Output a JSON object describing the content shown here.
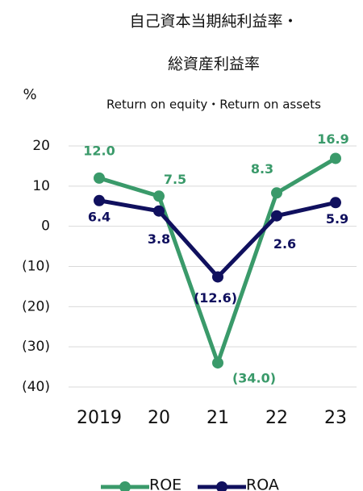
{
  "chart_data": {
    "type": "line",
    "title": "自己資本当期純利益率・",
    "title2": "総資産利益率",
    "subtitle": "Return on equity・Return on assets",
    "y_unit": "%",
    "categories": [
      "2019",
      "20",
      "21",
      "22",
      "23"
    ],
    "series": [
      {
        "name": "ROE",
        "color": "#3a9a6a",
        "values": [
          12.0,
          7.5,
          -34.0,
          8.3,
          16.9
        ],
        "value_labels": [
          "12.0",
          "7.5",
          "(34.0)",
          "8.3",
          "16.9"
        ]
      },
      {
        "name": "ROA",
        "color": "#10105e",
        "values": [
          6.4,
          3.8,
          -12.6,
          2.6,
          5.9
        ],
        "value_labels": [
          "6.4",
          "3.8",
          "(12.6)",
          "2.6",
          "5.9"
        ]
      }
    ],
    "ylim": [
      -40,
      20
    ],
    "yticks": [
      20,
      10,
      0,
      {
        "value": -10,
        "label": "(10)"
      },
      {
        "value": -20,
        "label": "(20)"
      },
      {
        "value": -30,
        "label": "(30)"
      },
      {
        "value": -40,
        "label": "(40)"
      }
    ],
    "grid": true
  }
}
